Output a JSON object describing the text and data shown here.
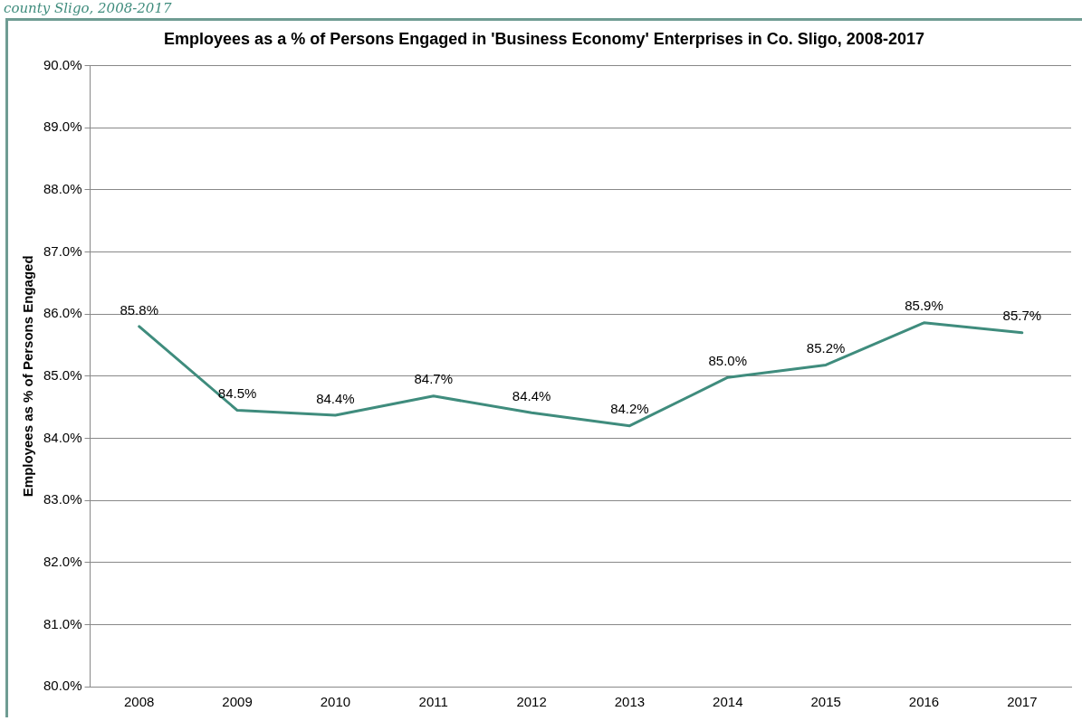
{
  "chart_data": {
    "type": "line",
    "title": "Employees as a % of Persons Engaged in 'Business Economy' Enterprises in Co. Sligo, 2008-2017",
    "ylabel": "Employees as % of Persons Engaged",
    "annotations": [
      "county Sligo, 2008-2017"
    ],
    "categories": [
      "2008",
      "2009",
      "2010",
      "2011",
      "2012",
      "2013",
      "2014",
      "2015",
      "2016",
      "2017"
    ],
    "series": [
      {
        "color": "#3f8c7d",
        "values": [
          85.8,
          84.45,
          84.37,
          84.68,
          84.41,
          84.2,
          84.98,
          85.18,
          85.86,
          85.7
        ],
        "value_labels": [
          "85.8%",
          "84.5%",
          "84.4%",
          "84.7%",
          "84.4%",
          "84.2%",
          "85.0%",
          "85.2%",
          "85.9%",
          "85.7%"
        ]
      }
    ],
    "ylim": [
      80,
      90
    ],
    "yticks": [
      {
        "value": 80,
        "label": "80.0%"
      },
      {
        "value": 81,
        "label": "81.0%"
      },
      {
        "value": 82,
        "label": "82.0%"
      },
      {
        "value": 83,
        "label": "83.0%"
      },
      {
        "value": 84,
        "label": "84.0%"
      },
      {
        "value": 85,
        "label": "85.0%"
      },
      {
        "value": 86,
        "label": "86.0%"
      },
      {
        "value": 87,
        "label": "87.0%"
      },
      {
        "value": 88,
        "label": "88.0%"
      },
      {
        "value": 89,
        "label": "89.0%"
      },
      {
        "value": 90,
        "label": "90.0%"
      }
    ],
    "grid": "y",
    "legend": false,
    "marker": "none",
    "line_style": "solid"
  }
}
